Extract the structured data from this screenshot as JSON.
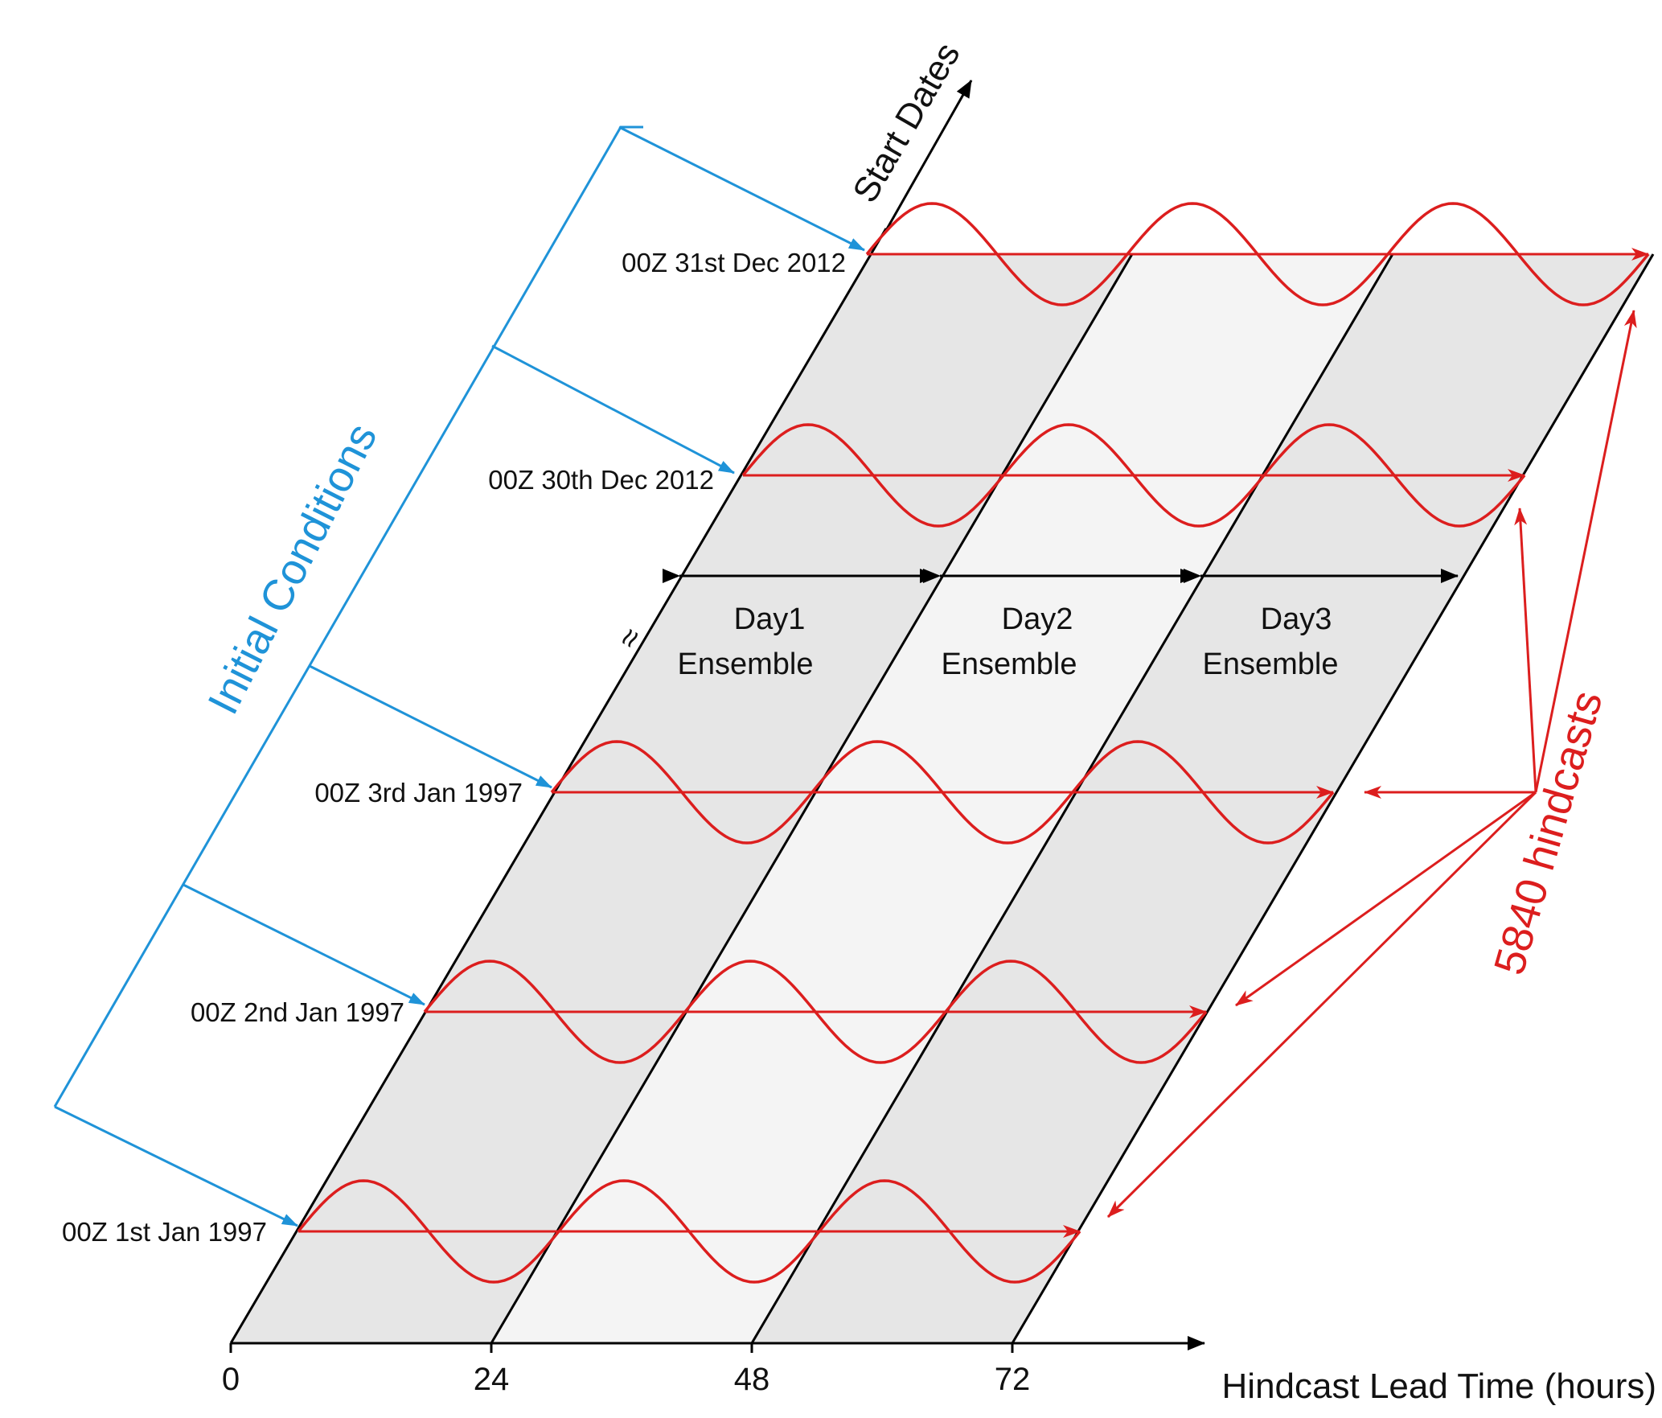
{
  "colors": {
    "ic": "#1f93d8",
    "run": "#dc1e1e",
    "band_dark": "#e6e6e6",
    "band_light": "#f4f4f4",
    "axis": "#000000"
  },
  "x_axis": {
    "title": "Hindcast Lead Time (hours)",
    "ticks": [
      "0",
      "24",
      "48",
      "72"
    ]
  },
  "y_axis": {
    "title": "Start Dates"
  },
  "break_mark": "≈",
  "initial_conditions_label": "Initial Conditions",
  "hindcasts_label": "5840 hindcasts",
  "ensembles": [
    {
      "day": "Day1",
      "label": "Ensemble"
    },
    {
      "day": "Day2",
      "label": "Ensemble"
    },
    {
      "day": "Day3",
      "label": "Ensemble"
    }
  ],
  "start_dates": [
    {
      "label": "00Z 1st Jan 1997"
    },
    {
      "label": "00Z 2nd Jan 1997"
    },
    {
      "label": "00Z 3rd Jan 1997"
    },
    {
      "label": "00Z 30th Dec 2012"
    },
    {
      "label": "00Z 31st Dec 2012"
    }
  ]
}
